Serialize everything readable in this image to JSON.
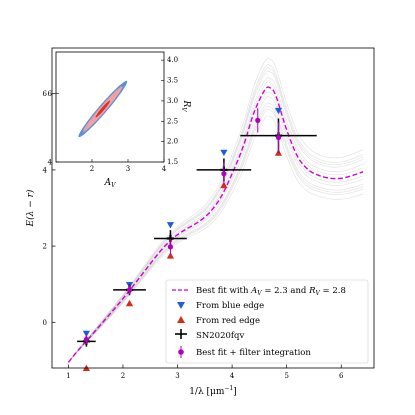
{
  "chart_data": [
    {
      "type": "line",
      "xlabel": "1/λ [μm⁻¹]",
      "ylabel": "E(λ − r)",
      "xlim": [
        0.7,
        6.6
      ],
      "ylim": [
        -1.2,
        7.2
      ],
      "xticks": [
        "1",
        "2",
        "3",
        "4",
        "5",
        "6"
      ],
      "yticks": [
        "0",
        "2",
        "4",
        "6"
      ],
      "grid": false,
      "legend_position": "lower-right",
      "best_fit_curve": {
        "name": "Best fit with AV = 2.3 and RV = 2.8",
        "color": "#d000d0",
        "x": [
          1.0,
          1.2,
          1.4,
          1.6,
          1.8,
          2.0,
          2.2,
          2.4,
          2.6,
          2.8,
          3.0,
          3.2,
          3.4,
          3.6,
          3.8,
          4.0,
          4.2,
          4.4,
          4.6,
          4.7,
          4.8,
          5.0,
          5.2,
          5.4,
          5.6,
          5.8,
          6.0,
          6.2,
          6.4
        ],
        "y": [
          -1.05,
          -0.7,
          -0.38,
          -0.05,
          0.28,
          0.62,
          0.98,
          1.35,
          1.72,
          2.05,
          2.3,
          2.48,
          2.65,
          2.9,
          3.3,
          3.9,
          4.6,
          5.5,
          6.1,
          6.15,
          5.95,
          5.05,
          4.35,
          4.0,
          3.85,
          3.78,
          3.78,
          3.85,
          3.95
        ]
      },
      "series": [
        {
          "name": "From blue edge",
          "marker": "triangle-down",
          "color": "#1f5fd6",
          "x": [
            1.33,
            2.12,
            2.87,
            3.85,
            4.85
          ],
          "y": [
            -0.3,
            0.98,
            2.55,
            4.45,
            5.55
          ]
        },
        {
          "name": "From red edge",
          "marker": "triangle-up",
          "color": "#d62a1a",
          "x": [
            1.33,
            2.12,
            2.87,
            3.85,
            4.85
          ],
          "y": [
            -1.2,
            0.5,
            1.75,
            3.6,
            4.45
          ]
        },
        {
          "name": "SN2020fqv",
          "marker": "plus",
          "color": "#000000",
          "x": [
            1.33,
            2.12,
            2.87,
            3.85,
            4.85
          ],
          "y": [
            -0.5,
            0.85,
            2.2,
            4.0,
            4.9
          ],
          "xerr": [
            0.17,
            0.3,
            0.3,
            0.5,
            0.7
          ],
          "yerr": [
            0.14,
            0.14,
            0.22,
            0.3,
            0.45
          ]
        },
        {
          "name": "Best fit + filter integration",
          "marker": "circle",
          "color": "#b000c0",
          "x": [
            1.33,
            2.12,
            2.87,
            3.85,
            4.47,
            4.85
          ],
          "y": [
            -0.45,
            0.85,
            1.98,
            3.9,
            5.3,
            4.85
          ],
          "yerr": [
            0.12,
            0.12,
            0.2,
            0.3,
            0.32,
            0.4
          ]
        }
      ]
    },
    {
      "type": "contour",
      "inset": true,
      "xlabel": "AV",
      "ylabel": "RV",
      "xlim": [
        1,
        4
      ],
      "ylim_left": [
        4,
        7.2
      ],
      "ylim_right": [
        1.5,
        4.2
      ],
      "xticks": [
        "2",
        "3",
        "4"
      ],
      "yticks_left": [
        "4",
        "6"
      ],
      "yticks_right": [
        "1.5",
        "2.0",
        "2.5",
        "3.0",
        "3.5",
        "4.0"
      ],
      "best_fit": {
        "AV": 2.3,
        "RV": 2.8
      },
      "contour_colors": [
        "#5b8fe0",
        "#f2a0a0",
        "#e03020"
      ]
    }
  ],
  "legend": {
    "best_fit_label_prefix": "Best fit with ",
    "av_symbol": "A",
    "av_sub": "V",
    "av_value": " = 2.3 and ",
    "rv_symbol": "R",
    "rv_sub": "V",
    "rv_value": " = 2.8",
    "blue_label": "From blue edge",
    "red_label": "From red edge",
    "sn_label": "SN2020fqv",
    "filter_label": "Best fit + filter integration"
  },
  "labels": {
    "y_axis": "E(λ − r)",
    "x_axis_prefix": "1/λ [μm",
    "x_axis_sup": "−1",
    "x_axis_suffix": "]",
    "inset_x_symbol": "A",
    "inset_x_sub": "V",
    "inset_y_symbol": "R",
    "inset_y_sub": "V"
  }
}
